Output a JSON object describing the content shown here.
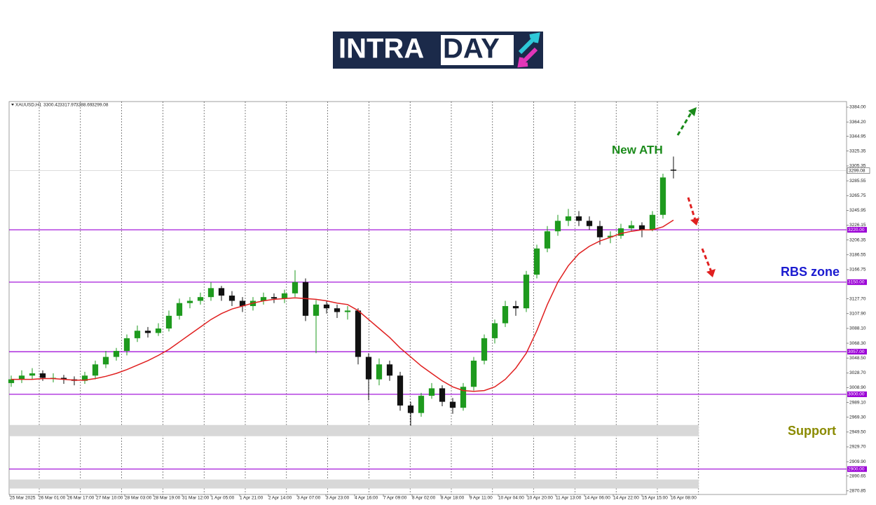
{
  "logo": {
    "left": "INTRA",
    "right": "DAY"
  },
  "chart_data": {
    "type": "candlestick",
    "symbol": "XAUUSD,H1",
    "bull_color": "#1e9a1e",
    "bear_color": "#111111",
    "ma_color": "#e02020",
    "level_color": "#9b00d6",
    "open": [
      3015,
      3020,
      3025,
      3028,
      3022,
      3022,
      3020,
      3018,
      3025,
      3040,
      3050,
      3058,
      3075,
      3085,
      3082,
      3088,
      3105,
      3122,
      3125,
      3130,
      3142,
      3132,
      3125,
      3118,
      3125,
      3130,
      3128,
      3135,
      3150,
      3105,
      3120,
      3115,
      3110,
      3112,
      3050,
      3020,
      3040,
      3025,
      2985,
      2975,
      2998,
      3008,
      2990,
      2982,
      3010,
      3045,
      3075,
      3095,
      3118,
      3115,
      3160,
      3195,
      3218,
      3232,
      3238,
      3232,
      3225,
      3210,
      3212,
      3222,
      3226,
      3220,
      3240,
      3300.42
    ],
    "high": [
      3025,
      3032,
      3035,
      3032,
      3028,
      3026,
      3024,
      3030,
      3045,
      3058,
      3062,
      3080,
      3092,
      3090,
      3095,
      3112,
      3128,
      3130,
      3136,
      3150,
      3145,
      3138,
      3130,
      3130,
      3136,
      3135,
      3140,
      3166,
      3155,
      3126,
      3125,
      3120,
      3118,
      3115,
      3055,
      3048,
      3045,
      3030,
      2990,
      3002,
      3015,
      3012,
      2995,
      3015,
      3050,
      3080,
      3100,
      3125,
      3125,
      3165,
      3200,
      3225,
      3240,
      3248,
      3245,
      3238,
      3232,
      3218,
      3228,
      3232,
      3230,
      3245,
      3295,
      3317.97
    ],
    "low": [
      3010,
      3015,
      3020,
      3018,
      3016,
      3014,
      3012,
      3014,
      3020,
      3035,
      3045,
      3052,
      3070,
      3076,
      3078,
      3084,
      3100,
      3115,
      3120,
      3125,
      3125,
      3118,
      3110,
      3112,
      3120,
      3122,
      3122,
      3130,
      3098,
      3055,
      3108,
      3102,
      3100,
      3040,
      2992,
      3012,
      3018,
      2978,
      2958,
      2970,
      2994,
      2984,
      2974,
      2978,
      3005,
      3040,
      3068,
      3090,
      3105,
      3110,
      3155,
      3190,
      3212,
      3225,
      3225,
      3220,
      3200,
      3202,
      3208,
      3218,
      3210,
      3218,
      3235,
      3288.69
    ],
    "close": [
      3020,
      3025,
      3028,
      3022,
      3022,
      3020,
      3018,
      3025,
      3040,
      3050,
      3058,
      3075,
      3085,
      3082,
      3088,
      3105,
      3122,
      3125,
      3130,
      3142,
      3132,
      3125,
      3118,
      3125,
      3130,
      3128,
      3135,
      3150,
      3105,
      3120,
      3115,
      3110,
      3112,
      3050,
      3020,
      3040,
      3025,
      2985,
      2975,
      2998,
      3008,
      2990,
      2982,
      3010,
      3045,
      3075,
      3095,
      3118,
      3115,
      3160,
      3195,
      3218,
      3232,
      3238,
      3232,
      3225,
      3210,
      3212,
      3222,
      3226,
      3220,
      3240,
      3290,
      3299.08
    ],
    "ma": [
      3020,
      3020,
      3020,
      3021,
      3021,
      3020,
      3019,
      3019,
      3021,
      3024,
      3028,
      3033,
      3039,
      3045,
      3052,
      3060,
      3070,
      3080,
      3090,
      3100,
      3108,
      3114,
      3118,
      3122,
      3125,
      3127,
      3128,
      3129,
      3128,
      3127,
      3125,
      3122,
      3120,
      3112,
      3100,
      3088,
      3076,
      3062,
      3050,
      3038,
      3028,
      3018,
      3010,
      3005,
      3004,
      3005,
      3010,
      3020,
      3035,
      3055,
      3085,
      3120,
      3150,
      3172,
      3188,
      3198,
      3205,
      3210,
      3215,
      3218,
      3220,
      3220,
      3224,
      3233
    ],
    "categories": [
      "25 Mar 2025",
      "26 Mar 01:00",
      "26 Mar 17:00",
      "27 Mar 10:00",
      "28 Mar 03:00",
      "28 Mar 19:00",
      "31 Mar 12:00",
      "1 Apr 05:00",
      "1 Apr 21:00",
      "2 Apr 14:00",
      "3 Apr 07:00",
      "3 Apr 23:00",
      "4 Apr 16:00",
      "7 Apr 09:00",
      "8 Apr 02:00",
      "8 Apr 18:00",
      "9 Apr 11:00",
      "10 Apr 04:00",
      "10 Apr 20:00",
      "11 Apr 13:00",
      "14 Apr 06:00",
      "14 Apr 22:00",
      "15 Apr 15:00",
      "16 Apr 08:00"
    ],
    "ylim": [
      2866,
      3391.5
    ],
    "yticks": [
      {
        "value": 3384,
        "label": "3384.00"
      },
      {
        "value": 3364.2,
        "label": "3364.20"
      },
      3344.95,
      3325.35,
      3305.35,
      3285.55,
      3265.75,
      3245.95,
      3226.15,
      3206.35,
      3186.55,
      3166.75,
      {
        "value": 3127.7,
        "label": "3127.70"
      },
      {
        "value": 3107.9,
        "label": "3107.90"
      },
      {
        "value": 3088.1,
        "label": "3088.10"
      },
      {
        "value": 3068.3,
        "label": "3068.30"
      },
      {
        "value": 3048.5,
        "label": "3048.50"
      },
      {
        "value": 3028.7,
        "label": "3028.70"
      },
      {
        "value": 3008.9,
        "label": "3008.90"
      },
      {
        "value": 2989.1,
        "label": "2989.10"
      },
      {
        "value": 2969.3,
        "label": "2969.30"
      },
      {
        "value": 2949.5,
        "label": "2949.50"
      },
      {
        "value": 2929.7,
        "label": "2929.70"
      },
      {
        "value": 2909.9,
        "label": "2909.90"
      },
      2890.65,
      2870.85
    ],
    "levels": [
      {
        "value": 3220,
        "label": "3220.00"
      },
      {
        "value": 3150,
        "label": "3150.00"
      },
      {
        "value": 3057,
        "label": "3057.00"
      },
      {
        "value": 3000,
        "label": "3000.00"
      },
      {
        "value": 2900,
        "label": "2900.00"
      }
    ],
    "zones": [
      [
        2944,
        2959
      ],
      [
        2874,
        2886
      ]
    ],
    "annotations": [
      {
        "text": "New ATH",
        "color": "#1a8a1a"
      },
      {
        "text": "RBS zone",
        "color": "#1a1ad0"
      },
      {
        "text": "Support",
        "color": "#8a8a00"
      }
    ]
  }
}
